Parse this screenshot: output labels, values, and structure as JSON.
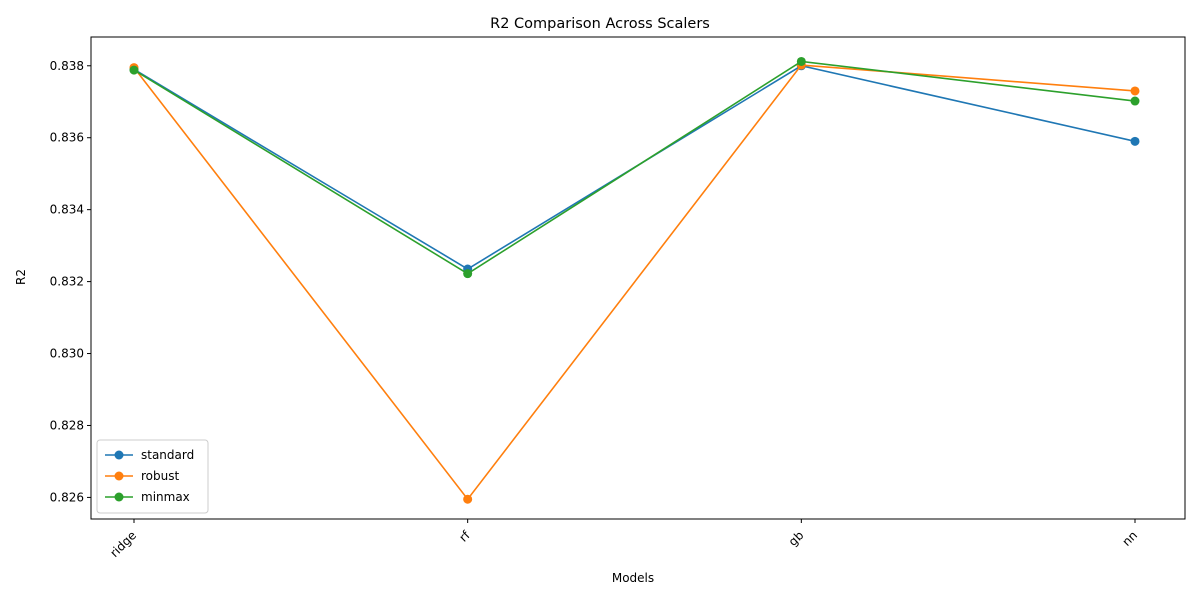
{
  "chart_data": {
    "type": "line",
    "title": "R2 Comparison Across Scalers",
    "xlabel": "Models",
    "ylabel": "R2",
    "categories": [
      "ridge",
      "rf",
      "gb",
      "nn"
    ],
    "ylim": [
      0.8254,
      0.8388
    ],
    "yticks": [
      0.826,
      0.828,
      0.83,
      0.832,
      0.834,
      0.836,
      0.838
    ],
    "ytick_labels": [
      "0.826",
      "0.828",
      "0.830",
      "0.832",
      "0.834",
      "0.836",
      "0.838"
    ],
    "grid": false,
    "legend_position": "lower-left",
    "series": [
      {
        "name": "standard",
        "color": "#1f77b4",
        "values": [
          0.8379,
          0.83235,
          0.838,
          0.8359
        ]
      },
      {
        "name": "robust",
        "color": "#ff7f0e",
        "values": [
          0.83795,
          0.82595,
          0.83802,
          0.8373
        ]
      },
      {
        "name": "minmax",
        "color": "#2ca02c",
        "values": [
          0.83788,
          0.83222,
          0.83812,
          0.83702
        ]
      }
    ]
  }
}
